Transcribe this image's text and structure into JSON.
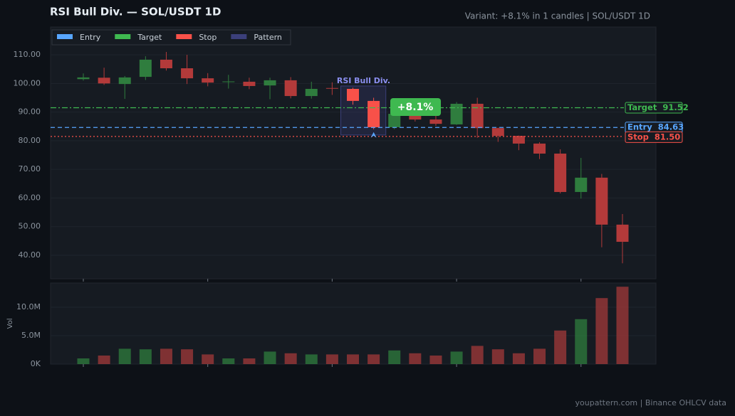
{
  "chart_data": {
    "type": "candlestick",
    "title": "RSI Bull Div.  —  SOL/USDT 1D",
    "subtitle": "Variant: +8.1% in 1 candles  |  SOL/USDT 1D",
    "footer": "youpattern.com  |  Binance OHLCV data",
    "volume_axis_label": "Vol",
    "open": [
      101.5,
      102.0,
      99.8,
      102.3,
      108.3,
      105.3,
      101.8,
      100.5,
      100.6,
      99.3,
      101.1,
      95.6,
      98.4,
      98.1,
      93.9,
      84.7,
      89.4,
      87.4,
      85.7,
      92.9,
      84.4,
      81.7,
      79.0,
      75.5,
      62.1,
      67.1,
      50.7
    ],
    "high": [
      103.5,
      105.5,
      102.6,
      109.5,
      111.0,
      110.0,
      103.6,
      103.0,
      102.0,
      102.0,
      102.2,
      100.6,
      100.4,
      98.5,
      95.0,
      92.0,
      91.0,
      89.5,
      93.5,
      95.0,
      84.6,
      81.8,
      79.5,
      77.0,
      74.0,
      68.4,
      54.4
    ],
    "low": [
      101.0,
      99.5,
      94.6,
      101.2,
      104.5,
      99.8,
      99.0,
      98.2,
      98.0,
      94.5,
      94.8,
      94.7,
      96.0,
      92.6,
      84.0,
      84.0,
      86.7,
      85.2,
      85.5,
      81.0,
      79.6,
      76.7,
      73.6,
      61.6,
      59.8,
      42.8,
      37.2
    ],
    "close": [
      102.1,
      100.0,
      102.1,
      108.3,
      105.3,
      101.8,
      100.3,
      100.7,
      99.1,
      101.1,
      95.6,
      98.1,
      98.3,
      93.9,
      84.7,
      89.4,
      87.4,
      85.9,
      92.9,
      84.4,
      81.7,
      79.0,
      75.5,
      62.1,
      67.1,
      50.7,
      44.7
    ],
    "volume": [
      1000000,
      1500000,
      2700000,
      2600000,
      2700000,
      2600000,
      1700000,
      1000000,
      1000000,
      2200000,
      1900000,
      1700000,
      1700000,
      1700000,
      1700000,
      2400000,
      1900000,
      1500000,
      2200000,
      3200000,
      2600000,
      1900000,
      2700000,
      5900000,
      7900000,
      11600000,
      13600000
    ],
    "up_color": "#2f7d3e",
    "down_color": "#b33a3a",
    "ylim": [
      31.8,
      119.7
    ],
    "yticks": [
      {
        "value": 40,
        "label": "40.00"
      },
      {
        "value": 50,
        "label": "50.00"
      },
      {
        "value": 60,
        "label": "60.00"
      },
      {
        "value": 70,
        "label": "70.00"
      },
      {
        "value": 80,
        "label": "80.00"
      },
      {
        "value": 90,
        "label": "90.00"
      },
      {
        "value": 100,
        "label": "100.00"
      },
      {
        "value": 110,
        "label": "110.00"
      }
    ],
    "y2lim": [
      0,
      14250000
    ],
    "y2ticks": [
      {
        "value": 0,
        "label": "0K"
      },
      {
        "value": 5000000,
        "label": "5.0M"
      },
      {
        "value": 10000000,
        "label": "10.0M"
      }
    ],
    "grid": true,
    "legend": [
      {
        "name": "Entry",
        "color": "#58a6ff"
      },
      {
        "name": "Target",
        "color": "#3fb950"
      },
      {
        "name": "Stop",
        "color": "#f85149"
      },
      {
        "name": "Pattern",
        "color": "#3b3f7a"
      }
    ],
    "levels": [
      {
        "name": "Target",
        "value": 91.52,
        "label": "91.52",
        "color": "#3fb950",
        "dash": "8 3 2 3"
      },
      {
        "name": "Entry",
        "value": 84.63,
        "label": "84.63",
        "color": "#58a6ff",
        "dash": "6 4"
      },
      {
        "name": "Stop",
        "value": 81.5,
        "label": "81.50",
        "color": "#f85149",
        "dash": "2 3"
      }
    ],
    "pattern": {
      "label": "RSI Bull Div.",
      "top": 99.1,
      "bottom": 82.0
    },
    "gain": {
      "value": 8.1,
      "label": "+8.1%"
    }
  }
}
